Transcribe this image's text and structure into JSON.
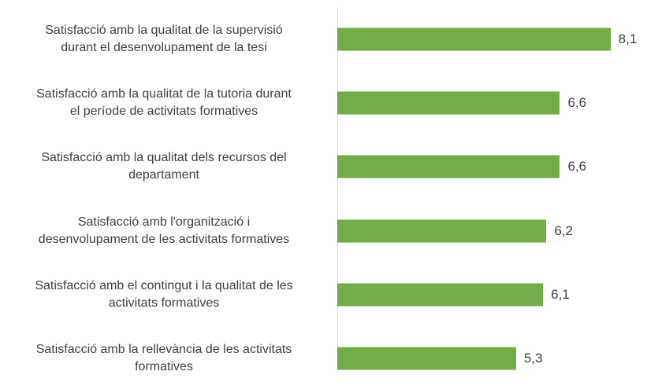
{
  "chart_data": {
    "type": "bar",
    "orientation": "horizontal",
    "categories": [
      "Satisfacció amb la qualitat de la supervisió\ndurant el desenvolupament de la tesi",
      "Satisfacció amb la qualitat de la tutoria durant\nel període de activitats formatives",
      "Satisfacció amb la qualitat dels recursos del\ndepartament",
      "Satisfacció amb l'organització i\ndesenvolupament  de les activitats formatives",
      "Satisfacció amb el contingut i la qualitat de les\nactivitats formatives",
      "Satisfacció amb la rellevància de les activitats\nformatives"
    ],
    "values": [
      8.1,
      6.6,
      6.6,
      6.2,
      6.1,
      5.3
    ],
    "value_labels": [
      "8,1",
      "6,6",
      "6,6",
      "6,2",
      "6,1",
      "5,3"
    ],
    "color": "#70ad47",
    "xlim": [
      0,
      10
    ]
  }
}
